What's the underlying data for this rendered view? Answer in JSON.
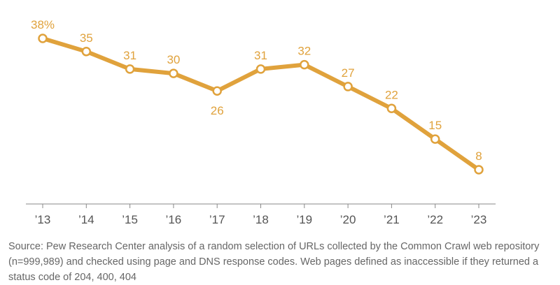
{
  "chart_data": {
    "type": "line",
    "categories": [
      "’13",
      "’14",
      "’15",
      "’16",
      "’17",
      "’18",
      "’19",
      "’20",
      "’21",
      "’22",
      "’23"
    ],
    "series": [
      {
        "values": [
          38,
          35,
          31,
          30,
          26,
          31,
          32,
          27,
          22,
          15,
          8
        ],
        "labels": [
          "38%",
          "35",
          "31",
          "30",
          "26",
          "31",
          "32",
          "27",
          "22",
          "15",
          "8"
        ],
        "color": "#e0a23c"
      }
    ],
    "label_position": [
      "above",
      "above",
      "above",
      "above",
      "below",
      "above",
      "above",
      "above",
      "above",
      "above",
      "above"
    ],
    "ylim": [
      0,
      42
    ],
    "grid": false
  },
  "source_note": "Source: Pew Research Center analysis of a random selection of URLs collected by the Common Crawl web repository (n=999,989) and checked using page and DNS response codes. Web pages defined as inaccessible if they returned a status code of 204, 400, 404"
}
